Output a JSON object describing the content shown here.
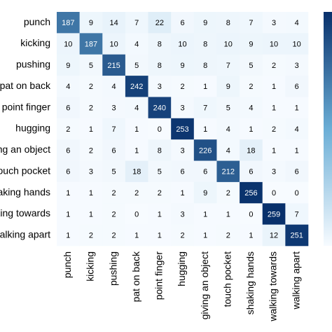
{
  "chart_data": {
    "type": "heatmap",
    "x_categories": [
      "punch",
      "kicking",
      "pushing",
      "pat on back",
      "point finger",
      "hugging",
      "giving an object",
      "touch pocket",
      "shaking hands",
      "walking towards",
      "walking apart"
    ],
    "y_categories": [
      "punch",
      "kicking",
      "pushing",
      "pat on back",
      "point finger",
      "hugging",
      "giving an object",
      "touch pocket",
      "shaking hands",
      "walking towards",
      "walking apart"
    ],
    "values": [
      [
        187,
        9,
        14,
        7,
        22,
        6,
        9,
        8,
        7,
        3,
        4
      ],
      [
        10,
        187,
        10,
        4,
        8,
        10,
        8,
        10,
        9,
        10,
        10
      ],
      [
        9,
        5,
        215,
        5,
        8,
        9,
        8,
        7,
        5,
        2,
        3
      ],
      [
        4,
        2,
        4,
        242,
        3,
        2,
        1,
        9,
        2,
        1,
        6
      ],
      [
        6,
        2,
        3,
        4,
        240,
        3,
        7,
        5,
        4,
        1,
        1
      ],
      [
        2,
        1,
        7,
        1,
        0,
        253,
        1,
        4,
        1,
        2,
        4
      ],
      [
        6,
        2,
        6,
        1,
        8,
        3,
        226,
        4,
        18,
        1,
        1
      ],
      [
        6,
        3,
        5,
        18,
        5,
        6,
        6,
        212,
        6,
        3,
        6
      ],
      [
        1,
        1,
        2,
        2,
        2,
        1,
        9,
        2,
        256,
        0,
        0
      ],
      [
        1,
        1,
        2,
        0,
        1,
        3,
        1,
        1,
        0,
        259,
        7
      ],
      [
        1,
        2,
        2,
        1,
        1,
        2,
        1,
        2,
        1,
        12,
        251
      ]
    ],
    "colormap": [
      "#f7fbff",
      "#08306b"
    ]
  }
}
